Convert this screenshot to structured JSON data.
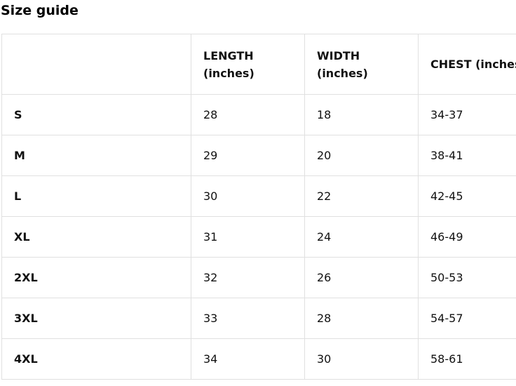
{
  "page": {
    "title": "Size guide"
  },
  "size_table": {
    "border_color": "#e0e0e0",
    "text_color": "#111111",
    "columns": [
      "",
      "LENGTH (inches)",
      "WIDTH (inches)",
      "CHEST (inches)"
    ],
    "rows": [
      {
        "size": "S",
        "length": "28",
        "width": "18",
        "chest": "34-37"
      },
      {
        "size": "M",
        "length": "29",
        "width": "20",
        "chest": "38-41"
      },
      {
        "size": "L",
        "length": "30",
        "width": "22",
        "chest": "42-45"
      },
      {
        "size": "XL",
        "length": "31",
        "width": "24",
        "chest": "46-49"
      },
      {
        "size": "2XL",
        "length": "32",
        "width": "26",
        "chest": "50-53"
      },
      {
        "size": "3XL",
        "length": "33",
        "width": "28",
        "chest": "54-57"
      },
      {
        "size": "4XL",
        "length": "34",
        "width": "30",
        "chest": "58-61"
      }
    ]
  }
}
